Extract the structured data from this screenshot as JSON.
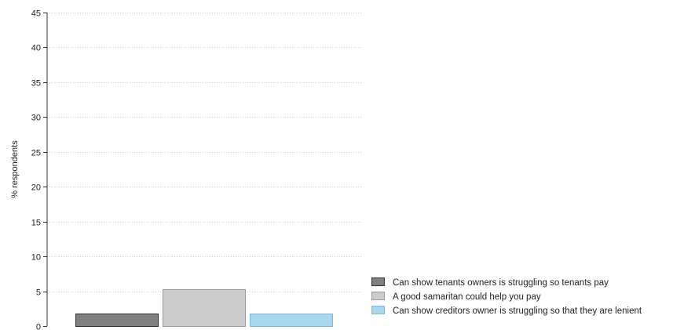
{
  "chart_data": {
    "type": "bar",
    "title": "",
    "xlabel": "",
    "ylabel": "% respondents",
    "ylim": [
      0,
      45
    ],
    "yticks": [
      0,
      5,
      10,
      15,
      20,
      25,
      30,
      35,
      40,
      45
    ],
    "grid": true,
    "legend_position": "bottom-right",
    "series": [
      {
        "name": "Can show tenants owners is struggling so tenants pay",
        "value": 1.8,
        "color": "#808080"
      },
      {
        "name": "A good samaritan could help you pay",
        "value": 5.3,
        "color": "#cccccc"
      },
      {
        "name": "Can show creditors owner is struggling so that they are lenient",
        "value": 1.8,
        "color": "#a8d8f0"
      }
    ]
  }
}
